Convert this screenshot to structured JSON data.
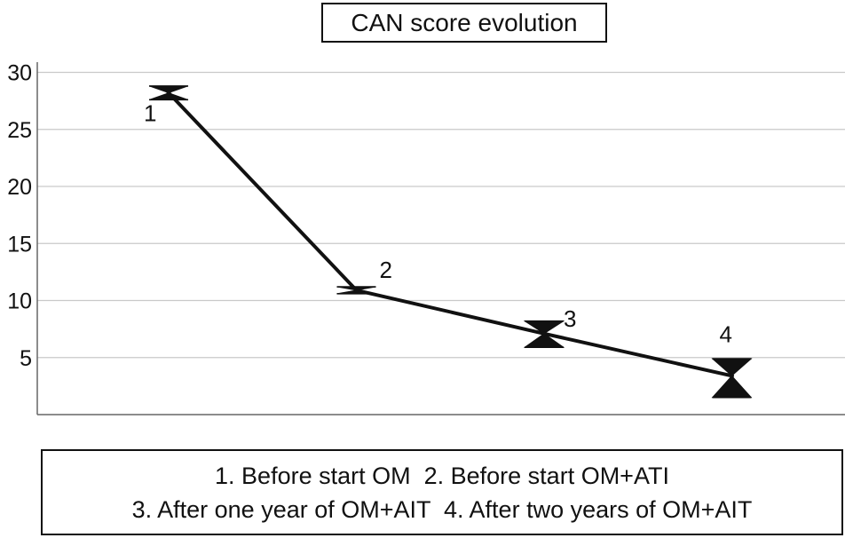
{
  "chart_data": {
    "type": "line",
    "title": "CAN score evolution",
    "xlabel": "",
    "ylabel": "",
    "ylim": [
      0,
      30
    ],
    "yticks": [
      5,
      10,
      15,
      20,
      25,
      30
    ],
    "grid": "horizontal",
    "legend_position": "bottom",
    "x": [
      1,
      2,
      3,
      4
    ],
    "point_labels": [
      "1",
      "2",
      "3",
      "4"
    ],
    "series": [
      {
        "values": [
          28.2,
          10.9,
          7.1,
          3.4
        ],
        "error_low": [
          27.6,
          10.6,
          5.9,
          1.5
        ],
        "error_high": [
          28.8,
          11.2,
          8.2,
          4.9
        ]
      }
    ],
    "legend_lines": [
      "1. Before start OM  2. Before start OM+ATI",
      "3. After one year of OM+AIT  4. After two years of OM+AIT"
    ]
  }
}
